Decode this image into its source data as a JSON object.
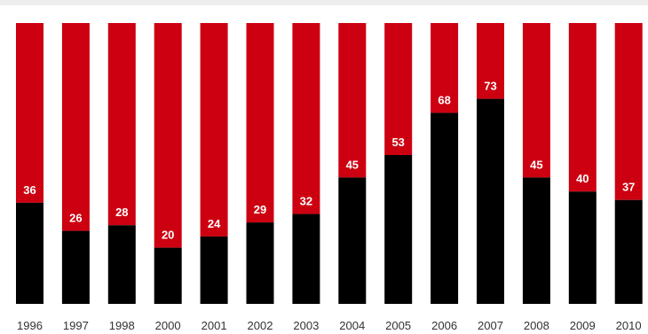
{
  "chart_data": {
    "type": "bar",
    "stacked_to": 100,
    "categories": [
      "1996",
      "1997",
      "1998",
      "2000",
      "2001",
      "2002",
      "2003",
      "2004",
      "2005",
      "2006",
      "2007",
      "2008",
      "2009",
      "2010"
    ],
    "values": [
      36,
      26,
      28,
      20,
      24,
      29,
      32,
      45,
      53,
      68,
      73,
      45,
      40,
      37
    ],
    "ylim": [
      0,
      100
    ],
    "grid": false,
    "legend": "none",
    "colors": {
      "value": "#000000",
      "remainder": "#cc0010",
      "label": "#ffffff"
    }
  }
}
